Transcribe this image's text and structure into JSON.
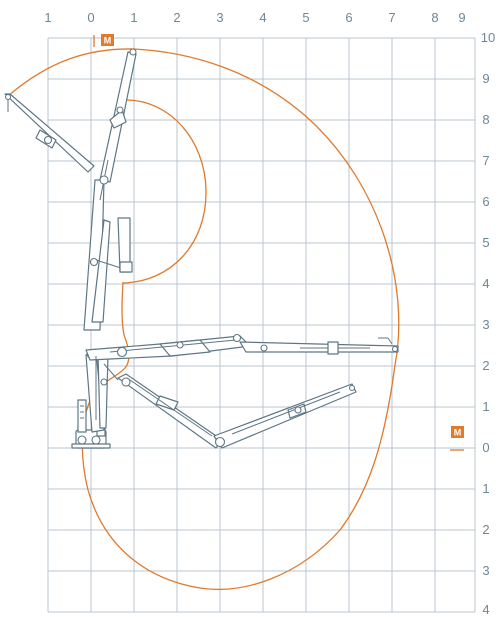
{
  "axes": {
    "top_labels": [
      "1",
      "0",
      "1",
      "2",
      "3",
      "4",
      "5",
      "6",
      "7",
      "8",
      "9"
    ],
    "right_labels": [
      "10",
      "9",
      "8",
      "7",
      "6",
      "5",
      "4",
      "3",
      "2",
      "1",
      "0",
      "1",
      "2",
      "3",
      "4"
    ]
  },
  "markers": {
    "top_label": "M",
    "right_label": "M"
  },
  "colors": {
    "grid": "#b9c6cf",
    "crane": "#5e7785",
    "envelope": "#e07a2c",
    "labels": "#6f8796"
  }
}
